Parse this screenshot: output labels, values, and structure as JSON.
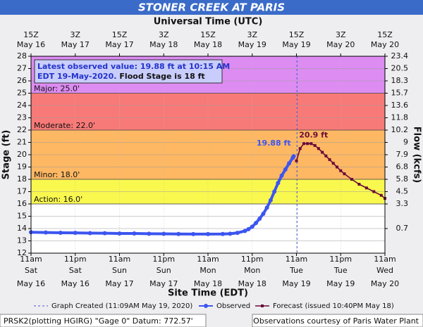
{
  "chart_data": {
    "type": "hydrograph",
    "title": "STONER CREEK AT PARIS",
    "top_axis_title": "Universal Time (UTC)",
    "x_axis_title": "Site Time (EDT)",
    "y_axis_title": "Stage (ft)",
    "y2_axis_title": "Flow (kcfs)",
    "xlim": [
      "May 16 11:00",
      "May 20 11:00"
    ],
    "xticks": [
      {
        "value": "May 16 11:00",
        "label": "11am",
        "day": "Sat",
        "date": "May 16"
      },
      {
        "value": "May 16 23:00",
        "label": "11pm",
        "day": "Sat",
        "date": "May 16"
      },
      {
        "value": "May 17 11:00",
        "label": "11am",
        "day": "Sun",
        "date": "May 17"
      },
      {
        "value": "May 17 23:00",
        "label": "11pm",
        "day": "Sun",
        "date": "May 17"
      },
      {
        "value": "May 18 11:00",
        "label": "11am",
        "day": "Mon",
        "date": "May 18"
      },
      {
        "value": "May 18 23:00",
        "label": "11pm",
        "day": "Mon",
        "date": "May 18"
      },
      {
        "value": "May 19 11:00",
        "label": "11am",
        "day": "Tue",
        "date": "May 19"
      },
      {
        "value": "May 19 23:00",
        "label": "11pm",
        "day": "Tue",
        "date": "May 19"
      },
      {
        "value": "May 20 11:00",
        "label": "11am",
        "day": "Wed",
        "date": "May 20"
      }
    ],
    "x2ticks": [
      {
        "value": "May 16 11:00",
        "label": "15Z",
        "date": "May 16"
      },
      {
        "value": "May 16 23:00",
        "label": "3Z",
        "date": "May 17"
      },
      {
        "value": "May 17 11:00",
        "label": "15Z",
        "date": "May 17"
      },
      {
        "value": "May 17 23:00",
        "label": "3Z",
        "date": "May 18"
      },
      {
        "value": "May 18 11:00",
        "label": "15Z",
        "date": "May 18"
      },
      {
        "value": "May 18 23:00",
        "label": "3Z",
        "date": "May 19"
      },
      {
        "value": "May 19 11:00",
        "label": "15Z",
        "date": "May 19"
      },
      {
        "value": "May 19 23:00",
        "label": "3Z",
        "date": "May 20"
      },
      {
        "value": "May 20 11:00",
        "label": "15Z",
        "date": "May 20"
      }
    ],
    "ylim": [
      12,
      28
    ],
    "yticks": [
      12,
      13,
      14,
      15,
      16,
      17,
      18,
      19,
      20,
      21,
      22,
      23,
      24,
      25,
      26,
      27,
      28
    ],
    "y2ticks": [
      23.4,
      20.5,
      18.3,
      15.7,
      13.6,
      11.8,
      10.2,
      9.0,
      7.9,
      6.8,
      5.8,
      4.5,
      3.3,
      0.7
    ],
    "y2ticks_at_stage": [
      28,
      27,
      26,
      25,
      24,
      23,
      22,
      21,
      20,
      19,
      18,
      17,
      16,
      14
    ],
    "grid": true,
    "flood_categories": [
      {
        "label": "Major: 25.0'",
        "stage": 25,
        "color": "#dd8cf2"
      },
      {
        "label": "Moderate: 22.0'",
        "stage": 22,
        "color": "#f87a78"
      },
      {
        "label": "Minor: 18.0'",
        "stage": 18,
        "color": "#feb863"
      },
      {
        "label": "Action: 16.0'",
        "stage": 16,
        "color": "#f9f84e"
      }
    ],
    "info_box": {
      "text": "Latest observed value: 19.88 ft at 10:15 AM",
      "text2": "EDT 19-May-2020.",
      "flood_stage": "Flood Stage is 18 ft"
    },
    "created": {
      "x": "May 19 11:09",
      "label": "Graph Created (11:09AM May 19, 2020)"
    },
    "series": [
      {
        "name": "Observed",
        "color": "#3c55f0",
        "x": [
          "May 16 11:00",
          "May 16 15:00",
          "May 16 19:00",
          "May 16 23:00",
          "May 17 03:00",
          "May 17 07:00",
          "May 17 11:00",
          "May 17 15:00",
          "May 17 19:00",
          "May 17 23:00",
          "May 18 03:00",
          "May 18 07:00",
          "May 18 11:00",
          "May 18 15:00",
          "May 18 17:00",
          "May 18 19:00",
          "May 18 21:00",
          "May 18 22:00",
          "May 18 23:00",
          "May 19 00:00",
          "May 19 01:00",
          "May 19 02:00",
          "May 19 03:00",
          "May 19 04:00",
          "May 19 05:00",
          "May 19 06:00",
          "May 19 07:00",
          "May 19 08:00",
          "May 19 09:00",
          "May 19 10:00",
          "May 19 10:15"
        ],
        "values": [
          13.7,
          13.68,
          13.66,
          13.65,
          13.63,
          13.62,
          13.6,
          13.6,
          13.58,
          13.57,
          13.56,
          13.55,
          13.55,
          13.56,
          13.58,
          13.65,
          13.8,
          13.95,
          14.15,
          14.45,
          14.8,
          15.2,
          15.7,
          16.3,
          17.0,
          17.7,
          18.3,
          18.8,
          19.3,
          19.75,
          19.88
        ]
      },
      {
        "name": "Forecast (issued 10:40PM May 18)",
        "color": "#6a0a3a",
        "x": [
          "May 19 11:00",
          "May 19 12:00",
          "May 19 13:00",
          "May 19 14:00",
          "May 19 15:00",
          "May 19 16:00",
          "May 19 17:00",
          "May 19 18:00",
          "May 19 19:00",
          "May 19 20:00",
          "May 19 21:00",
          "May 19 22:00",
          "May 19 23:00",
          "May 20 00:00",
          "May 20 02:00",
          "May 20 04:00",
          "May 20 06:00",
          "May 20 08:00",
          "May 20 10:00",
          "May 20 11:00"
        ],
        "values": [
          19.5,
          20.5,
          20.9,
          20.9,
          20.9,
          20.75,
          20.5,
          20.2,
          19.9,
          19.6,
          19.3,
          19.0,
          18.7,
          18.45,
          18.0,
          17.6,
          17.3,
          17.0,
          16.7,
          16.45
        ]
      }
    ],
    "annotations": [
      {
        "text": "19.88 ft",
        "x": "May 19 10:15",
        "y": 19.88,
        "color": "#3c55f0"
      },
      {
        "text": "20.9 ft",
        "x": "May 19 14:00",
        "y": 20.9,
        "color": "#6a0a3a"
      }
    ],
    "footer_left": "PRSK2(plotting HGIRG) \"Gage 0\" Datum: 772.57'",
    "footer_right": "Observations courtesy of Paris Water Plant"
  }
}
